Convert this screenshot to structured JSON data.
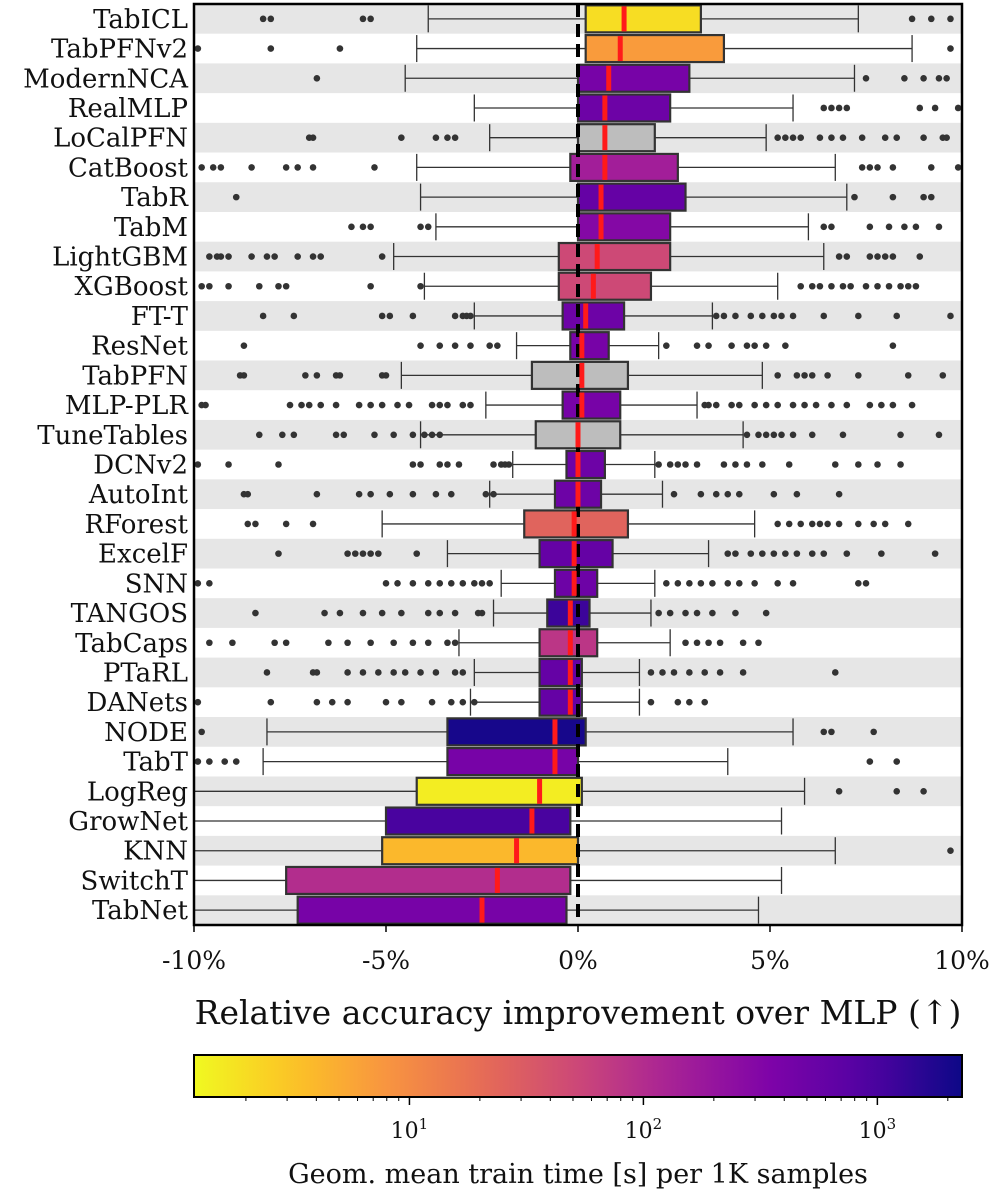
{
  "chart_data": {
    "type": "box",
    "title": "",
    "xlabel": "Relative accuracy improvement over MLP (↑)",
    "ylabel": "",
    "xlim": [
      -10,
      10
    ],
    "xticks": [
      {
        "value": -10,
        "label": "-10%"
      },
      {
        "value": -5,
        "label": "-5%"
      },
      {
        "value": 0,
        "label": "0%"
      },
      {
        "value": 5,
        "label": "5%"
      },
      {
        "value": 10,
        "label": "10%"
      }
    ],
    "reference_line": 0,
    "colorbar": {
      "label": "Geom. mean train time [s] per 1K samples",
      "scale": "log",
      "colormap": "plasma (reversed)",
      "range": [
        1.2,
        2300
      ],
      "ticks": [
        {
          "value": 10,
          "label": "10",
          "exp": "1"
        },
        {
          "value": 100,
          "label": "10",
          "exp": "2"
        },
        {
          "value": 1000,
          "label": "10",
          "exp": "3"
        }
      ]
    },
    "series": [
      {
        "name": "TabICL",
        "q1": 0.2,
        "median": 1.2,
        "q3": 3.2,
        "whisker_low": -3.9,
        "whisker_high": 7.3,
        "train_time": 2,
        "outliers": [
          -8.2,
          -8.0,
          -5.6,
          -5.4,
          8.7,
          9.2,
          9.7
        ]
      },
      {
        "name": "TabPFNv2",
        "q1": 0.2,
        "median": 1.1,
        "q3": 3.8,
        "whisker_low": -4.2,
        "whisker_high": 8.7,
        "train_time": 7,
        "outliers": [
          -9.9,
          -8.0,
          -6.2,
          9.7
        ]
      },
      {
        "name": "ModernNCA",
        "q1": 0.0,
        "median": 0.8,
        "q3": 2.9,
        "whisker_low": -4.5,
        "whisker_high": 7.2,
        "train_time": 400,
        "outliers": [
          -6.8,
          7.5,
          8.5,
          9.0,
          9.4,
          9.6
        ]
      },
      {
        "name": "RealMLP",
        "q1": 0.0,
        "median": 0.7,
        "q3": 2.4,
        "whisker_low": -2.7,
        "whisker_high": 5.6,
        "train_time": 500,
        "outliers": [
          6.4,
          6.6,
          6.8,
          7.0,
          8.9,
          9.3,
          9.9
        ]
      },
      {
        "name": "LoCalPFN",
        "q1": 0.0,
        "median": 0.7,
        "q3": 2.0,
        "whisker_low": -2.3,
        "whisker_high": 4.9,
        "train_time": null,
        "outliers": [
          -7.0,
          -6.9,
          -4.6,
          -3.7,
          -3.4,
          -3.2,
          5.2,
          5.4,
          5.6,
          5.8,
          6.3,
          6.6,
          6.9,
          7.4,
          8.0,
          8.3,
          9.0,
          9.5,
          9.6
        ]
      },
      {
        "name": "CatBoost",
        "q1": -0.2,
        "median": 0.7,
        "q3": 2.6,
        "whisker_low": -4.2,
        "whisker_high": 6.7,
        "train_time": 150,
        "outliers": [
          -9.8,
          -9.5,
          -9.3,
          -8.5,
          -7.6,
          -7.3,
          -6.9,
          -5.3,
          7.4,
          7.6,
          7.8,
          8.2,
          9.2,
          9.9
        ]
      },
      {
        "name": "TabR",
        "q1": 0.0,
        "median": 0.6,
        "q3": 2.8,
        "whisker_low": -4.1,
        "whisker_high": 7.0,
        "train_time": 600,
        "outliers": [
          -8.9,
          7.2,
          8.2,
          9.0,
          9.2
        ]
      },
      {
        "name": "TabM",
        "q1": 0.0,
        "median": 0.6,
        "q3": 2.4,
        "whisker_low": -3.7,
        "whisker_high": 6.0,
        "train_time": 300,
        "outliers": [
          -5.9,
          -5.6,
          -5.4,
          -4.1,
          -3.9,
          6.4,
          6.6,
          7.6,
          8.1,
          8.5,
          8.8,
          9.4
        ]
      },
      {
        "name": "LightGBM",
        "q1": -0.5,
        "median": 0.5,
        "q3": 2.4,
        "whisker_low": -4.8,
        "whisker_high": 6.4,
        "train_time": 50,
        "outliers": [
          -9.6,
          -9.4,
          -9.3,
          -9.1,
          -8.5,
          -8.1,
          -7.9,
          -7.3,
          -6.9,
          -6.7,
          -5.1,
          6.8,
          7.0,
          7.6,
          7.8,
          8.0,
          8.2,
          8.9
        ]
      },
      {
        "name": "XGBoost",
        "q1": -0.5,
        "median": 0.4,
        "q3": 1.9,
        "whisker_low": -4.0,
        "whisker_high": 5.2,
        "train_time": 50,
        "outliers": [
          -9.8,
          -9.6,
          -9.1,
          -8.3,
          -7.8,
          -7.6,
          -5.4,
          -4.1,
          5.8,
          6.1,
          6.3,
          6.6,
          6.9,
          7.1,
          7.5,
          7.8,
          8.1,
          8.4,
          8.6,
          8.8
        ]
      },
      {
        "name": "FT-T",
        "q1": -0.4,
        "median": 0.2,
        "q3": 1.2,
        "whisker_low": -2.7,
        "whisker_high": 3.5,
        "train_time": 500,
        "outliers": [
          -8.2,
          -7.4,
          -5.1,
          -4.9,
          -4.3,
          -3.2,
          -3.0,
          -2.9,
          -2.8,
          3.6,
          3.8,
          4.1,
          4.5,
          4.8,
          5.1,
          5.3,
          5.6,
          6.4,
          7.3,
          8.3,
          9.7
        ]
      },
      {
        "name": "ResNet",
        "q1": -0.2,
        "median": 0.1,
        "q3": 0.8,
        "whisker_low": -1.6,
        "whisker_high": 2.1,
        "train_time": 400,
        "outliers": [
          -8.7,
          -4.1,
          -3.6,
          -3.2,
          -2.8,
          -2.3,
          -2.1,
          2.3,
          3.1,
          3.4,
          4.0,
          4.4,
          4.6,
          4.9,
          5.4,
          8.2
        ]
      },
      {
        "name": "TabPFN",
        "q1": -1.2,
        "median": 0.1,
        "q3": 1.3,
        "whisker_low": -4.6,
        "whisker_high": 4.8,
        "train_time": null,
        "outliers": [
          -8.8,
          -8.7,
          -7.1,
          -6.8,
          -6.3,
          -6.2,
          -5.1,
          -5.0,
          5.2,
          5.7,
          5.9,
          6.1,
          6.5,
          7.3,
          8.6,
          9.5
        ]
      },
      {
        "name": "MLP-PLR",
        "q1": -0.4,
        "median": 0.1,
        "q3": 1.1,
        "whisker_low": -2.4,
        "whisker_high": 3.1,
        "train_time": 400,
        "outliers": [
          -9.8,
          -9.7,
          -7.5,
          -7.2,
          -7.0,
          -6.7,
          -6.3,
          -5.7,
          -5.4,
          -5.1,
          -4.7,
          -4.4,
          -3.8,
          -3.6,
          -3.4,
          -3.0,
          -2.8,
          3.3,
          3.4,
          3.6,
          4.0,
          4.2,
          4.6,
          4.9,
          5.2,
          5.6,
          5.9,
          6.2,
          6.6,
          7.0,
          7.6,
          7.9,
          8.2,
          8.7
        ]
      },
      {
        "name": "TuneTables",
        "q1": -1.1,
        "median": 0.0,
        "q3": 1.1,
        "whisker_low": -4.1,
        "whisker_high": 4.3,
        "train_time": null,
        "outliers": [
          -8.3,
          -7.7,
          -7.4,
          -6.3,
          -6.1,
          -5.3,
          -4.8,
          -4.3,
          -4.0,
          -3.8,
          -3.6,
          4.4,
          4.7,
          4.9,
          5.1,
          5.3,
          5.6,
          6.1,
          6.9,
          8.4,
          9.4
        ]
      },
      {
        "name": "DCNv2",
        "q1": -0.3,
        "median": 0.0,
        "q3": 0.7,
        "whisker_low": -1.7,
        "whisker_high": 2.0,
        "train_time": 500,
        "outliers": [
          -9.9,
          -9.1,
          -7.8,
          -4.3,
          -4.1,
          -3.6,
          -3.4,
          -3.1,
          -2.2,
          -2.0,
          -1.9,
          -1.8,
          2.1,
          2.4,
          2.6,
          2.8,
          3.1,
          3.8,
          4.1,
          4.4,
          4.8,
          5.5,
          6.7,
          7.3,
          7.8,
          8.4
        ]
      },
      {
        "name": "AutoInt",
        "q1": -0.6,
        "median": 0.0,
        "q3": 0.6,
        "whisker_low": -2.3,
        "whisker_high": 2.2,
        "train_time": 500,
        "outliers": [
          -8.7,
          -8.6,
          -6.8,
          -5.7,
          -5.4,
          -4.9,
          -4.3,
          -3.7,
          -3.3,
          -2.4,
          -2.2,
          2.5,
          3.2,
          3.6,
          3.9,
          4.2,
          5.1,
          5.7,
          6.8
        ]
      },
      {
        "name": "RForest",
        "q1": -1.4,
        "median": -0.1,
        "q3": 1.3,
        "whisker_low": -5.1,
        "whisker_high": 4.6,
        "train_time": 25,
        "outliers": [
          -8.6,
          -8.4,
          -7.6,
          -6.9,
          5.2,
          5.5,
          5.8,
          6.1,
          6.3,
          6.5,
          6.8,
          7.3,
          7.7,
          8.0,
          8.6
        ]
      },
      {
        "name": "ExcelF",
        "q1": -1.0,
        "median": -0.1,
        "q3": 0.9,
        "whisker_low": -3.4,
        "whisker_high": 3.4,
        "train_time": 600,
        "outliers": [
          -7.8,
          -6.0,
          -5.8,
          -5.6,
          -5.4,
          -5.2,
          -4.2,
          3.9,
          4.1,
          4.5,
          4.8,
          5.1,
          5.4,
          5.7,
          6.1,
          6.4,
          7.0,
          7.9,
          9.3
        ]
      },
      {
        "name": "SNN",
        "q1": -0.6,
        "median": -0.1,
        "q3": 0.5,
        "whisker_low": -2.0,
        "whisker_high": 2.0,
        "train_time": 500,
        "outliers": [
          -9.9,
          -9.6,
          -5.0,
          -4.7,
          -4.3,
          -3.9,
          -3.6,
          -3.3,
          -3.0,
          -2.7,
          -2.5,
          -2.3,
          2.3,
          2.6,
          2.9,
          3.2,
          3.5,
          3.9,
          4.2,
          4.6,
          5.2,
          5.6,
          7.3,
          7.5
        ]
      },
      {
        "name": "TANGOS",
        "q1": -0.8,
        "median": -0.2,
        "q3": 0.3,
        "whisker_low": -2.2,
        "whisker_high": 1.9,
        "train_time": 1200,
        "outliers": [
          -8.4,
          -6.6,
          -6.2,
          -5.6,
          -5.1,
          -4.6,
          -3.9,
          -3.6,
          -3.2,
          -2.6,
          -2.5,
          2.1,
          2.4,
          2.8,
          3.1,
          3.5,
          4.1,
          4.9
        ]
      },
      {
        "name": "TabCaps",
        "q1": -1.0,
        "median": -0.2,
        "q3": 0.5,
        "whisker_low": -3.1,
        "whisker_high": 2.4,
        "train_time": 80,
        "outliers": [
          -9.6,
          -9.0,
          -7.9,
          -7.6,
          -6.5,
          -6.0,
          -5.4,
          -4.8,
          -4.3,
          -3.9,
          -3.4,
          -3.2,
          2.8,
          3.1,
          3.4,
          3.7,
          4.3,
          4.7
        ]
      },
      {
        "name": "PTaRL",
        "q1": -1.0,
        "median": -0.2,
        "q3": 0.1,
        "whisker_low": -2.7,
        "whisker_high": 1.6,
        "train_time": 600,
        "outliers": [
          -8.1,
          -6.9,
          -6.8,
          -6.0,
          -5.6,
          -5.2,
          -4.8,
          -4.5,
          -4.1,
          -3.7,
          -3.2,
          -3.0,
          1.9,
          2.2,
          2.5,
          2.9,
          3.3,
          3.7,
          4.3,
          6.7
        ]
      },
      {
        "name": "DANets",
        "q1": -1.0,
        "median": -0.2,
        "q3": 0.1,
        "whisker_low": -2.8,
        "whisker_high": 1.6,
        "train_time": 600,
        "outliers": [
          -9.9,
          -8.0,
          -6.8,
          -6.4,
          -6.0,
          -5.0,
          -4.6,
          -3.8,
          -3.3,
          -3.0,
          -2.7,
          1.9,
          2.6,
          2.9,
          3.3
        ]
      },
      {
        "name": "NODE",
        "q1": -3.4,
        "median": -0.6,
        "q3": 0.2,
        "whisker_low": -8.1,
        "whisker_high": 5.6,
        "train_time": 2000,
        "outliers": [
          -9.8,
          6.4,
          6.6,
          7.7
        ]
      },
      {
        "name": "TabT",
        "q1": -3.4,
        "median": -0.6,
        "q3": 0.0,
        "whisker_low": -8.2,
        "whisker_high": 3.9,
        "train_time": 400,
        "outliers": [
          -9.9,
          -9.6,
          -9.2,
          -8.9,
          7.6,
          8.3
        ]
      },
      {
        "name": "LogReg",
        "q1": -4.2,
        "median": -1.0,
        "q3": 0.1,
        "whisker_low": -10.0,
        "whisker_high": 5.9,
        "train_time": 1.5,
        "outliers": [
          6.8,
          8.3,
          9.0
        ]
      },
      {
        "name": "GrowNet",
        "q1": -5.0,
        "median": -1.2,
        "q3": -0.2,
        "whisker_low": -10.0,
        "whisker_high": 5.3,
        "train_time": 1000,
        "outliers": []
      },
      {
        "name": "KNN",
        "q1": -5.1,
        "median": -1.6,
        "q3": 0.0,
        "whisker_low": -10.0,
        "whisker_high": 6.7,
        "train_time": 4,
        "outliers": [
          9.7
        ]
      },
      {
        "name": "SwitchT",
        "q1": -7.6,
        "median": -2.1,
        "q3": -0.2,
        "whisker_low": -10.0,
        "whisker_high": 5.3,
        "train_time": 100,
        "outliers": []
      },
      {
        "name": "TabNet",
        "q1": -7.3,
        "median": -2.5,
        "q3": -0.3,
        "whisker_low": -10.0,
        "whisker_high": 4.7,
        "train_time": 400,
        "outliers": []
      }
    ]
  }
}
